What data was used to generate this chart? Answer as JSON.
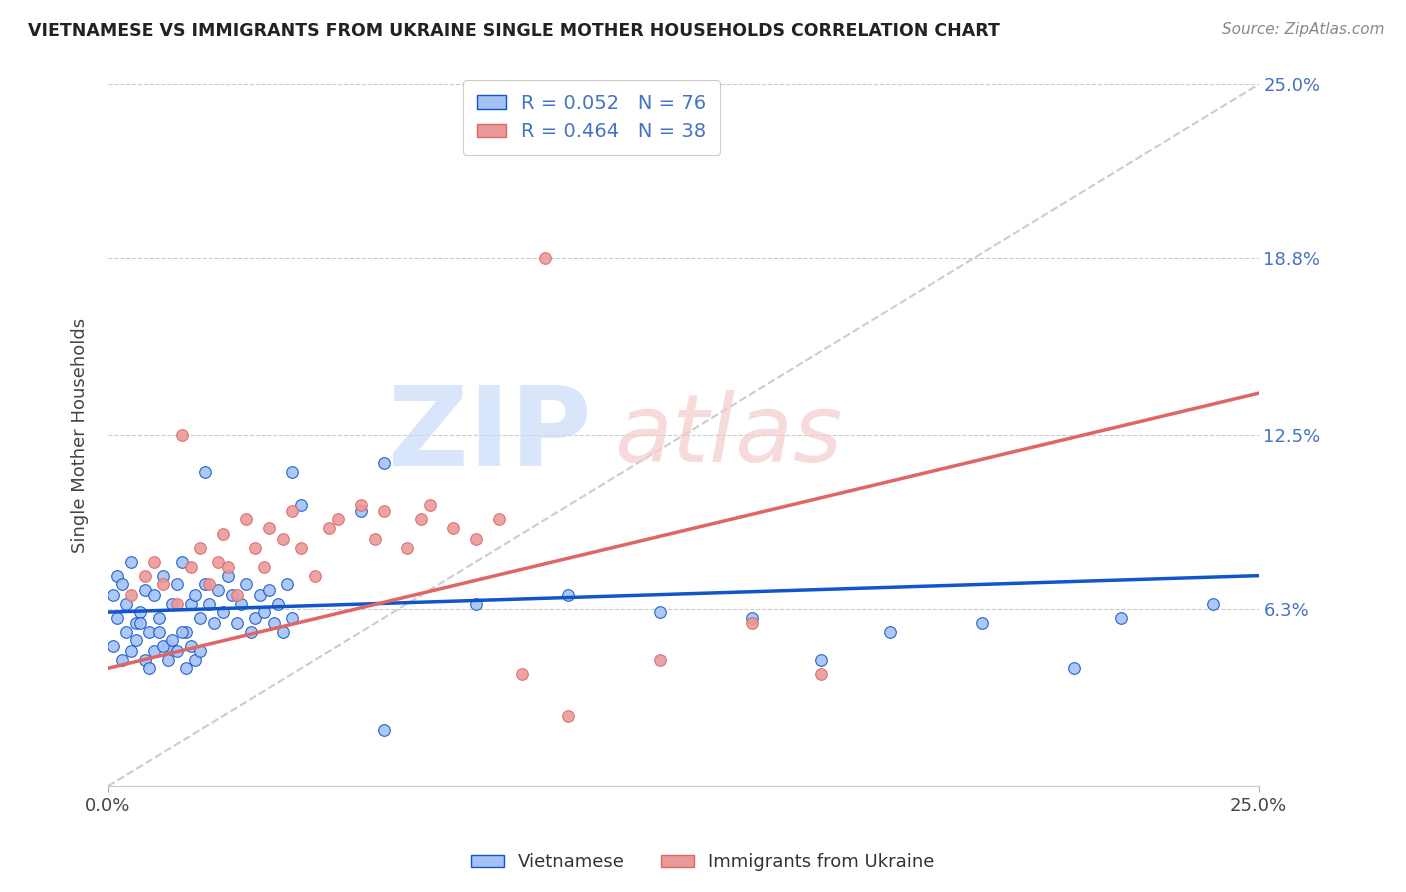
{
  "title": "VIETNAMESE VS IMMIGRANTS FROM UKRAINE SINGLE MOTHER HOUSEHOLDS CORRELATION CHART",
  "source": "Source: ZipAtlas.com",
  "ylabel": "Single Mother Households",
  "xmin": 0.0,
  "xmax": 0.25,
  "ymin": 0.0,
  "ymax": 0.25,
  "ytick_vals": [
    0.0,
    0.063,
    0.125,
    0.188,
    0.25
  ],
  "right_ytick_labels": [
    "",
    "6.3%",
    "12.5%",
    "18.8%",
    "25.0%"
  ],
  "legend_labels": [
    "Vietnamese",
    "Immigrants from Ukraine"
  ],
  "blue_color": "#a4c2f4",
  "pink_color": "#ea9999",
  "blue_line_color": "#1155cc",
  "pink_line_color": "#e06666",
  "R_blue": 0.052,
  "N_blue": 76,
  "R_pink": 0.464,
  "N_pink": 38,
  "blue_scatter": [
    [
      0.001,
      0.068
    ],
    [
      0.002,
      0.075
    ],
    [
      0.003,
      0.072
    ],
    [
      0.004,
      0.065
    ],
    [
      0.005,
      0.08
    ],
    [
      0.006,
      0.058
    ],
    [
      0.007,
      0.062
    ],
    [
      0.008,
      0.07
    ],
    [
      0.009,
      0.055
    ],
    [
      0.01,
      0.068
    ],
    [
      0.011,
      0.06
    ],
    [
      0.012,
      0.075
    ],
    [
      0.013,
      0.05
    ],
    [
      0.014,
      0.065
    ],
    [
      0.015,
      0.072
    ],
    [
      0.016,
      0.08
    ],
    [
      0.017,
      0.055
    ],
    [
      0.018,
      0.065
    ],
    [
      0.019,
      0.068
    ],
    [
      0.02,
      0.06
    ],
    [
      0.021,
      0.072
    ],
    [
      0.022,
      0.065
    ],
    [
      0.023,
      0.058
    ],
    [
      0.024,
      0.07
    ],
    [
      0.025,
      0.062
    ],
    [
      0.026,
      0.075
    ],
    [
      0.027,
      0.068
    ],
    [
      0.028,
      0.058
    ],
    [
      0.029,
      0.065
    ],
    [
      0.03,
      0.072
    ],
    [
      0.031,
      0.055
    ],
    [
      0.032,
      0.06
    ],
    [
      0.033,
      0.068
    ],
    [
      0.034,
      0.062
    ],
    [
      0.035,
      0.07
    ],
    [
      0.036,
      0.058
    ],
    [
      0.037,
      0.065
    ],
    [
      0.038,
      0.055
    ],
    [
      0.039,
      0.072
    ],
    [
      0.04,
      0.06
    ],
    [
      0.001,
      0.05
    ],
    [
      0.002,
      0.06
    ],
    [
      0.003,
      0.045
    ],
    [
      0.004,
      0.055
    ],
    [
      0.005,
      0.048
    ],
    [
      0.006,
      0.052
    ],
    [
      0.007,
      0.058
    ],
    [
      0.008,
      0.045
    ],
    [
      0.009,
      0.042
    ],
    [
      0.01,
      0.048
    ],
    [
      0.011,
      0.055
    ],
    [
      0.012,
      0.05
    ],
    [
      0.013,
      0.045
    ],
    [
      0.014,
      0.052
    ],
    [
      0.015,
      0.048
    ],
    [
      0.016,
      0.055
    ],
    [
      0.017,
      0.042
    ],
    [
      0.018,
      0.05
    ],
    [
      0.019,
      0.045
    ],
    [
      0.02,
      0.048
    ],
    [
      0.021,
      0.112
    ],
    [
      0.04,
      0.112
    ],
    [
      0.06,
      0.115
    ],
    [
      0.042,
      0.1
    ],
    [
      0.055,
      0.098
    ],
    [
      0.08,
      0.065
    ],
    [
      0.1,
      0.068
    ],
    [
      0.12,
      0.062
    ],
    [
      0.14,
      0.06
    ],
    [
      0.155,
      0.045
    ],
    [
      0.17,
      0.055
    ],
    [
      0.19,
      0.058
    ],
    [
      0.21,
      0.042
    ],
    [
      0.22,
      0.06
    ],
    [
      0.24,
      0.065
    ],
    [
      0.06,
      0.02
    ]
  ],
  "pink_scatter": [
    [
      0.005,
      0.068
    ],
    [
      0.008,
      0.075
    ],
    [
      0.01,
      0.08
    ],
    [
      0.012,
      0.072
    ],
    [
      0.015,
      0.065
    ],
    [
      0.016,
      0.125
    ],
    [
      0.018,
      0.078
    ],
    [
      0.02,
      0.085
    ],
    [
      0.022,
      0.072
    ],
    [
      0.024,
      0.08
    ],
    [
      0.025,
      0.09
    ],
    [
      0.026,
      0.078
    ],
    [
      0.028,
      0.068
    ],
    [
      0.03,
      0.095
    ],
    [
      0.032,
      0.085
    ],
    [
      0.034,
      0.078
    ],
    [
      0.035,
      0.092
    ],
    [
      0.038,
      0.088
    ],
    [
      0.04,
      0.098
    ],
    [
      0.042,
      0.085
    ],
    [
      0.045,
      0.075
    ],
    [
      0.048,
      0.092
    ],
    [
      0.05,
      0.095
    ],
    [
      0.055,
      0.1
    ],
    [
      0.058,
      0.088
    ],
    [
      0.06,
      0.098
    ],
    [
      0.065,
      0.085
    ],
    [
      0.068,
      0.095
    ],
    [
      0.07,
      0.1
    ],
    [
      0.075,
      0.092
    ],
    [
      0.08,
      0.088
    ],
    [
      0.085,
      0.095
    ],
    [
      0.09,
      0.04
    ],
    [
      0.095,
      0.188
    ],
    [
      0.1,
      0.025
    ],
    [
      0.12,
      0.045
    ],
    [
      0.14,
      0.058
    ],
    [
      0.155,
      0.04
    ]
  ]
}
